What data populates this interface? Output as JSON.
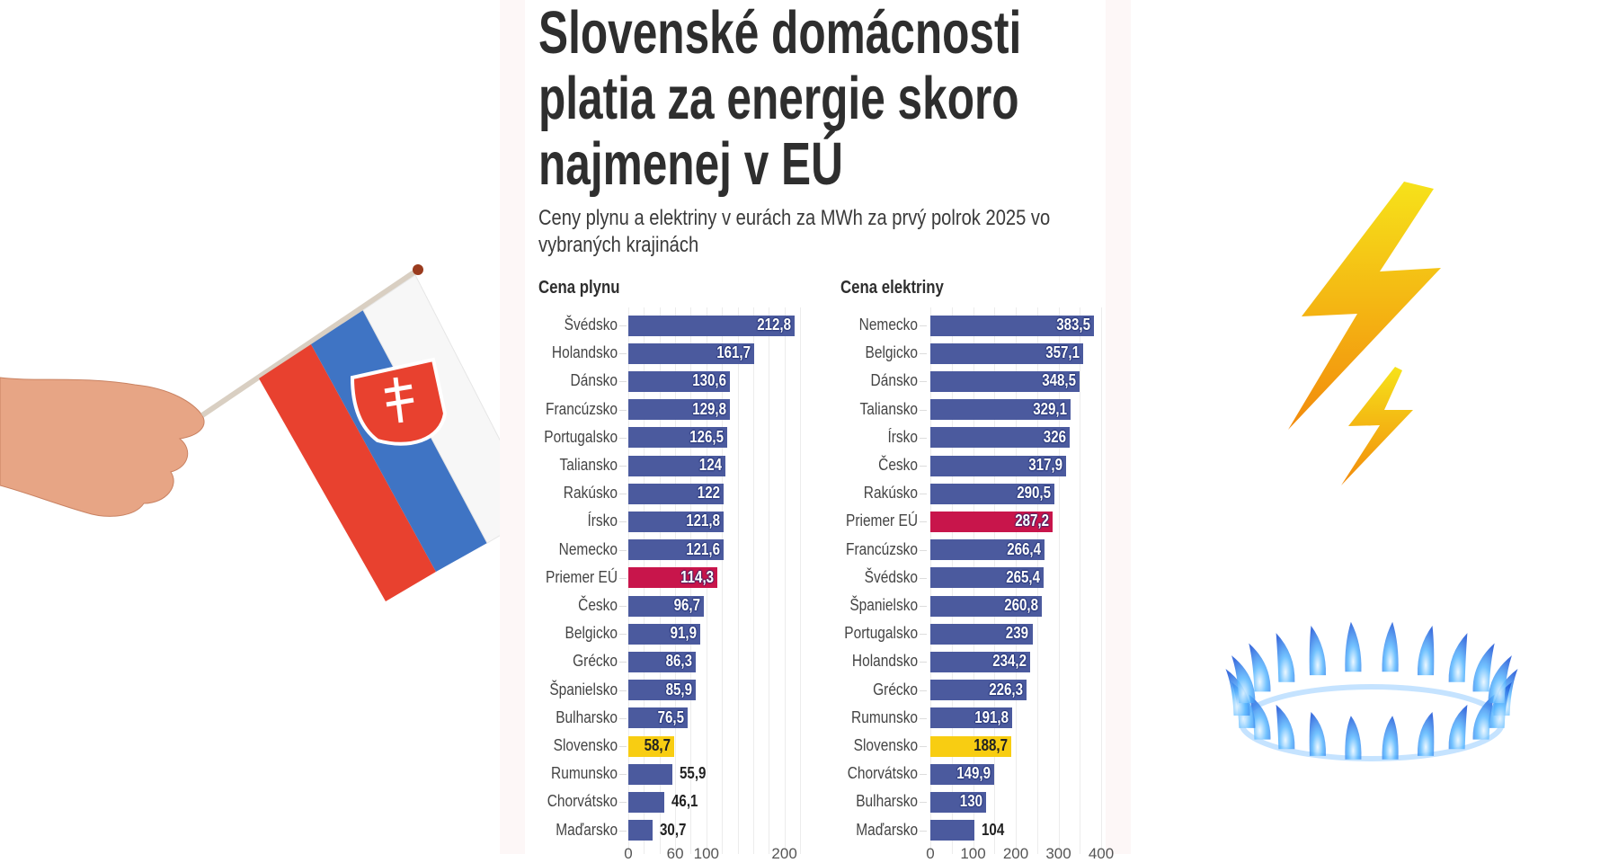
{
  "title_lines": [
    "Slovenské domácnosti",
    "platia za energie skoro",
    "najmenej v EÚ"
  ],
  "subtitle_lines": [
    "Ceny plynu a elektriny v eurách za MWh za prvý polrok 2025 vo",
    "vybraných krajinách"
  ],
  "colors": {
    "default": "#4b5a9e",
    "eu_average": "#c8154b",
    "slovakia": "#f8cd12"
  },
  "chart_data": [
    {
      "type": "bar",
      "orientation": "horizontal",
      "title": "Cena plynu",
      "unit": "EUR/MWh",
      "categories": [
        "Švédsko",
        "Holandsko",
        "Dánsko",
        "Francúzsko",
        "Portugalsko",
        "Taliansko",
        "Rakúsko",
        "Írsko",
        "Nemecko",
        "Priemer EÚ",
        "Česko",
        "Belgicko",
        "Grécko",
        "Španielsko",
        "Bulharsko",
        "Slovensko",
        "Rumunsko",
        "Chorvátsko",
        "Maďarsko"
      ],
      "values": [
        212.8,
        161.7,
        130.6,
        129.8,
        126.5,
        124,
        122,
        121.8,
        121.6,
        114.3,
        96.7,
        91.9,
        86.3,
        85.9,
        76.5,
        58.7,
        55.9,
        46.1,
        30.7
      ],
      "value_labels": [
        "212,8",
        "161,7",
        "130,6",
        "129,8",
        "126,5",
        "124",
        "122",
        "121,8",
        "121,6",
        "114,3",
        "96,7",
        "91,9",
        "86,3",
        "85,9",
        "76,5",
        "58,7",
        "55,9",
        "46,1",
        "30,7"
      ],
      "highlight": {
        "Priemer EÚ": "eu_average",
        "Slovensko": "slovakia"
      },
      "xlim": [
        0,
        220
      ],
      "grid_step": 20,
      "x_tick_labels": [
        {
          "value": 0,
          "label": "0"
        },
        {
          "value": 60,
          "label": "60"
        },
        {
          "value": 100,
          "label": "100"
        },
        {
          "value": 200,
          "label": "200"
        }
      ]
    },
    {
      "type": "bar",
      "orientation": "horizontal",
      "title": "Cena elektriny",
      "unit": "EUR/MWh",
      "categories": [
        "Nemecko",
        "Belgicko",
        "Dánsko",
        "Taliansko",
        "Írsko",
        "Česko",
        "Rakúsko",
        "Priemer EÚ",
        "Francúzsko",
        "Švédsko",
        "Španielsko",
        "Portugalsko",
        "Holandsko",
        "Grécko",
        "Rumunsko",
        "Slovensko",
        "Chorvátsko",
        "Bulharsko",
        "Maďarsko"
      ],
      "values": [
        383.5,
        357.1,
        348.5,
        329.1,
        326,
        317.9,
        290.5,
        287.2,
        266.4,
        265.4,
        260.8,
        239,
        234.2,
        226.3,
        191.8,
        188.7,
        149.9,
        130,
        104
      ],
      "value_labels": [
        "383,5",
        "357,1",
        "348,5",
        "329,1",
        "326",
        "317,9",
        "290,5",
        "287,2",
        "266,4",
        "265,4",
        "260,8",
        "239",
        "234,2",
        "226,3",
        "191,8",
        "188,7",
        "149,9",
        "130",
        "104"
      ],
      "highlight": {
        "Priemer EÚ": "eu_average",
        "Slovensko": "slovakia"
      },
      "xlim": [
        0,
        400
      ],
      "grid_step": 50,
      "x_tick_labels": [
        {
          "value": 0,
          "label": "0"
        },
        {
          "value": 100,
          "label": "100"
        },
        {
          "value": 200,
          "label": "200"
        },
        {
          "value": 300,
          "label": "300"
        },
        {
          "value": 400,
          "label": "400"
        }
      ]
    }
  ]
}
